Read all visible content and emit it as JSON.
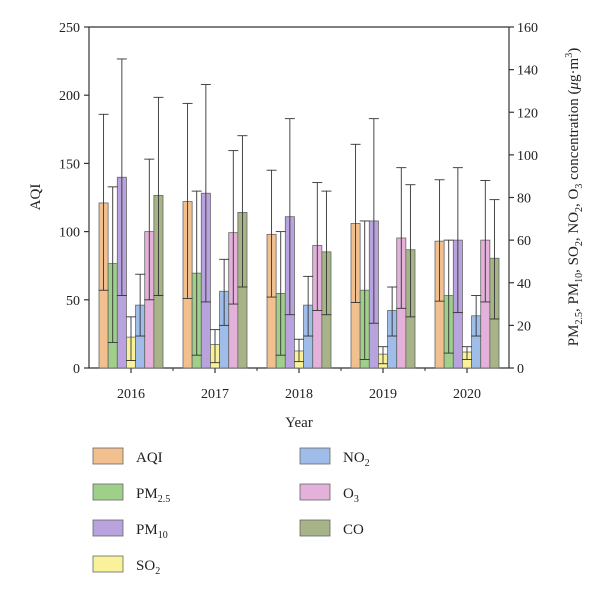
{
  "chart_data": {
    "type": "bar",
    "categories": [
      "2016",
      "2017",
      "2018",
      "2019",
      "2020"
    ],
    "xlabel": "Year",
    "ylabel_left": "AQI",
    "ylabel_right": {
      "pm25_main": "PM",
      "pm25_sub": "2.5",
      "pm10_main": ", PM",
      "pm10_sub": "10",
      "so2_main": ", SO",
      "so2_sub": "2",
      "no2_main": ", NO",
      "no2_sub": "2",
      "o3_main": ", O",
      "o3_sub": "3",
      "tail": " concentration (",
      "mu": "μ",
      "unit_g": "g·m",
      "unit_sup": "3",
      "close": ")"
    },
    "ylim_left": [
      0,
      250
    ],
    "ylim_right": [
      0,
      160
    ],
    "yticks_left": [
      "0",
      "50",
      "100",
      "150",
      "200",
      "250"
    ],
    "yticks_right": [
      "0",
      "20",
      "40",
      "60",
      "80",
      "100",
      "120",
      "140",
      "160"
    ],
    "series": [
      {
        "key": "aqi",
        "name": "AQI",
        "name_main": "AQI",
        "name_sub": "",
        "axis": "left",
        "color": "#f2c08f",
        "values": [
          121,
          122,
          98,
          106,
          93
        ],
        "err_low": [
          57,
          51,
          52,
          48,
          49
        ],
        "err_high": [
          186,
          194,
          145,
          164,
          138
        ]
      },
      {
        "key": "pm25",
        "name": "PM2.5",
        "name_main": "PM",
        "name_sub": "2.5",
        "axis": "right",
        "color": "#9fd08a",
        "values": [
          49,
          44.5,
          35,
          36.5,
          34
        ],
        "err_low": [
          12,
          6,
          6,
          4,
          7
        ],
        "err_high": [
          85,
          83,
          64,
          69,
          60
        ]
      },
      {
        "key": "pm10",
        "name": "PM10",
        "name_main": "PM",
        "name_sub": "10",
        "axis": "right",
        "color": "#b9a3df",
        "values": [
          89.5,
          82,
          71,
          69,
          60
        ],
        "err_low": [
          34,
          31,
          25,
          21,
          26
        ],
        "err_high": [
          145,
          133,
          117,
          117,
          94
        ]
      },
      {
        "key": "so2",
        "name": "SO2",
        "name_main": "SO",
        "name_sub": "2",
        "axis": "right",
        "color": "#f9f29a",
        "values": [
          14.5,
          11,
          8,
          6.5,
          7.5
        ],
        "err_low": [
          3.5,
          2.5,
          3,
          2,
          4
        ],
        "err_high": [
          24,
          18,
          13.5,
          10,
          10
        ]
      },
      {
        "key": "no2",
        "name": "NO2",
        "name_main": "NO",
        "name_sub": "2",
        "axis": "right",
        "color": "#9fbde8",
        "values": [
          29.5,
          36,
          29.5,
          27,
          24.5
        ],
        "err_low": [
          15,
          20,
          15,
          15,
          15
        ],
        "err_high": [
          44,
          51,
          43,
          38,
          34
        ]
      },
      {
        "key": "o3",
        "name": "O3",
        "name_main": "O",
        "name_sub": "3",
        "axis": "right",
        "color": "#e3b1da",
        "values": [
          64,
          63.5,
          57.5,
          61,
          60
        ],
        "err_low": [
          32,
          30,
          27,
          28,
          31
        ],
        "err_high": [
          98,
          102,
          87,
          94,
          88
        ]
      },
      {
        "key": "co",
        "name": "CO",
        "name_main": "CO",
        "name_sub": "",
        "axis": "right",
        "color": "#a6b487",
        "values": [
          81,
          73,
          54.5,
          55.5,
          51.5
        ],
        "err_low": [
          34,
          38,
          25,
          24,
          23
        ],
        "err_high": [
          127,
          109,
          83,
          86,
          79
        ]
      }
    ],
    "legend_placement": "bottom",
    "grid": false
  }
}
